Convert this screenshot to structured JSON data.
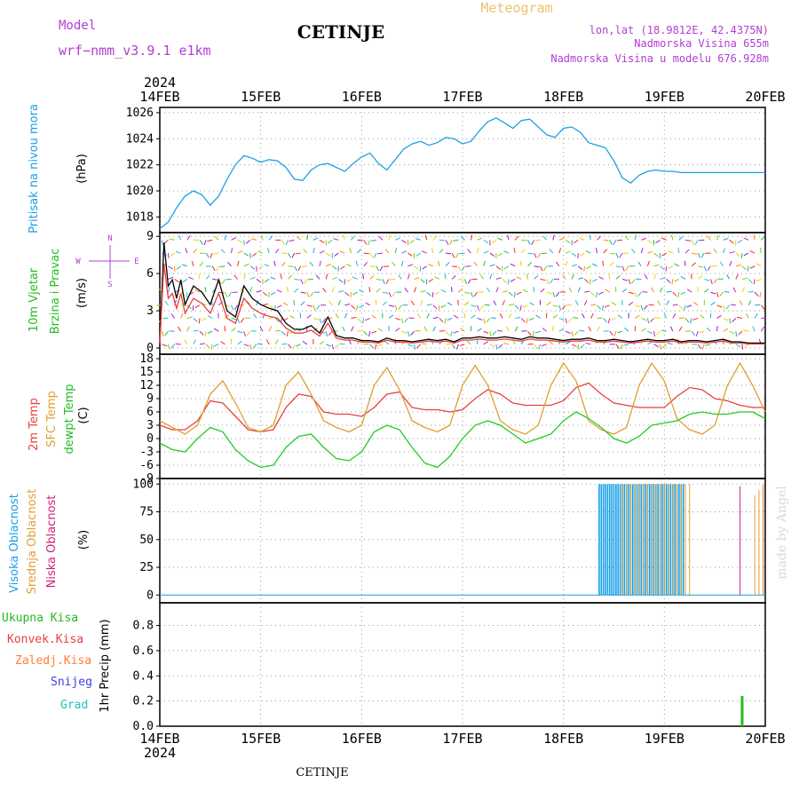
{
  "header": {
    "model_label": "Model",
    "model_name": "wrf−nmm_v3.9.1  e1km",
    "station": "CETINJE",
    "meteogram": "Meteogram",
    "lonlat": "lon,lat (18.9812E, 42.4375N)",
    "altitude": "Nadmorska Visina 655m",
    "model_altitude": "Nadmorska Visina u modelu 676.928m"
  },
  "footer": {
    "station": "CETINJE"
  },
  "watermark": "made by Angel",
  "colors": {
    "pressure": "#1aa0e6",
    "wind_label": "#22bb22",
    "compass": "#b040d0",
    "temp2m": "#e84040",
    "sfc": "#e0a030",
    "dew": "#22cc22",
    "cloud_high": "#1aa0e6",
    "cloud_mid": "#e0a030",
    "cloud_low": "#d02080",
    "precip_total": "#22bb22",
    "precip_conv": "#e84040",
    "precip_frz": "#ff7f30",
    "precip_snow": "#4040e0",
    "precip_grad": "#20c0c0"
  },
  "chart_data": {
    "type": "line",
    "x_axis": {
      "year": "2024",
      "ticks": [
        "14FEB",
        "15FEB",
        "16FEB",
        "17FEB",
        "18FEB",
        "19FEB",
        "20FEB"
      ],
      "range_hours": [
        0,
        144
      ]
    },
    "panels": [
      {
        "key": "pressure",
        "ylabel": [
          "Pritisak na nivou mora",
          "(hPa)"
        ],
        "yticks": [
          1018,
          1020,
          1022,
          1024,
          1026
        ],
        "ylim": [
          1016.8,
          1026.4
        ],
        "grid": true,
        "series": [
          {
            "name": "Pritisak na nivou mora",
            "x": [
              0,
              2,
              4,
              6,
              8,
              10,
              12,
              14,
              16,
              18,
              20,
              22,
              24,
              26,
              28,
              30,
              32,
              34,
              36,
              38,
              40,
              42,
              44,
              46,
              48,
              50,
              52,
              54,
              56,
              58,
              60,
              62,
              64,
              66,
              68,
              70,
              72,
              74,
              76,
              78,
              80,
              82,
              84,
              86,
              88,
              90,
              92,
              94,
              96,
              98,
              100,
              102,
              104,
              106,
              108,
              110,
              112,
              114,
              116,
              118,
              120,
              122,
              124,
              126,
              128,
              130,
              132,
              134,
              136,
              138,
              140,
              142,
              144
            ],
            "values": [
              1017.1,
              1017.6,
              1018.7,
              1019.6,
              1020.0,
              1019.7,
              1018.9,
              1019.6,
              1020.9,
              1022.0,
              1022.7,
              1022.5,
              1022.2,
              1022.4,
              1022.3,
              1021.8,
              1020.9,
              1020.8,
              1021.6,
              1022.0,
              1022.1,
              1021.8,
              1021.5,
              1022.1,
              1022.6,
              1022.9,
              1022.1,
              1021.6,
              1022.4,
              1023.2,
              1023.6,
              1023.8,
              1023.5,
              1023.7,
              1024.1,
              1024.0,
              1023.6,
              1023.8,
              1024.6,
              1025.3,
              1025.6,
              1025.2,
              1024.8,
              1025.4,
              1025.5,
              1024.9,
              1024.3,
              1024.1,
              1024.8,
              1024.9,
              1024.5,
              1023.7,
              1023.5,
              1023.3,
              1022.3,
              1021.0,
              1020.6,
              1021.2,
              1021.5,
              1021.6,
              1021.5,
              1021.5,
              1021.4,
              1021.4,
              1021.4,
              1021.4,
              1021.4,
              1021.4,
              1021.4,
              1021.4,
              1021.4,
              1021.4,
              1021.4
            ]
          }
        ]
      },
      {
        "key": "wind",
        "ylabel": [
          "10m Vjetar",
          "Brzina i Pravac",
          "(m/s)"
        ],
        "compass": {
          "n": "N",
          "w": "W",
          "e": "E",
          "s": "S"
        },
        "yticks": [
          0,
          3,
          6,
          9
        ],
        "ylim": [
          -0.5,
          9.3
        ],
        "grid": true,
        "series": [
          {
            "name": "Brzina",
            "x": [
              0,
              1,
              2,
              3,
              4,
              5,
              6,
              8,
              10,
              12,
              14,
              16,
              18,
              20,
              22,
              24,
              26,
              28,
              30,
              32,
              34,
              36,
              38,
              40,
              42,
              44,
              46,
              48,
              50,
              52,
              54,
              56,
              58,
              60,
              62,
              64,
              66,
              68,
              70,
              72,
              74,
              76,
              78,
              80,
              82,
              84,
              86,
              88,
              90,
              92,
              94,
              96,
              98,
              100,
              102,
              104,
              106,
              108,
              110,
              112,
              114,
              116,
              118,
              120,
              122,
              124,
              126,
              128,
              130,
              132,
              134,
              136,
              138,
              140,
              142,
              144
            ],
            "values": [
              0.5,
              8.5,
              5.0,
              5.5,
              4.0,
              5.5,
              3.5,
              5.0,
              4.5,
              3.5,
              5.5,
              3.0,
              2.5,
              5.0,
              4.0,
              3.5,
              3.2,
              3.0,
              2.0,
              1.5,
              1.5,
              1.8,
              1.2,
              2.5,
              1.0,
              0.8,
              0.8,
              0.6,
              0.6,
              0.5,
              0.8,
              0.6,
              0.6,
              0.5,
              0.6,
              0.7,
              0.6,
              0.7,
              0.5,
              0.8,
              0.8,
              0.9,
              0.8,
              0.8,
              0.9,
              0.8,
              0.7,
              0.9,
              0.8,
              0.8,
              0.7,
              0.6,
              0.7,
              0.7,
              0.8,
              0.6,
              0.6,
              0.7,
              0.6,
              0.5,
              0.6,
              0.7,
              0.6,
              0.6,
              0.7,
              0.5,
              0.6,
              0.6,
              0.5,
              0.6,
              0.7,
              0.5,
              0.5,
              0.4,
              0.4,
              0.4
            ]
          }
        ]
      },
      {
        "key": "temperature",
        "ylabel": [
          "2m Temp",
          "SFC Temp",
          "dewpt Temp",
          "(C)"
        ],
        "yticks": [
          -9,
          -6,
          -3,
          0,
          3,
          6,
          9,
          12,
          15,
          18
        ],
        "ylim": [
          -9,
          19
        ],
        "grid": true,
        "series": [
          {
            "name": "2m Temp",
            "x": [
              0,
              3,
              6,
              9,
              12,
              15,
              18,
              21,
              24,
              27,
              30,
              33,
              36,
              39,
              42,
              45,
              48,
              51,
              54,
              57,
              60,
              63,
              66,
              69,
              72,
              75,
              78,
              81,
              84,
              87,
              90,
              93,
              96,
              99,
              102,
              105,
              108,
              111,
              114,
              117,
              120,
              123,
              126,
              129,
              132,
              135,
              138,
              141,
              144
            ],
            "values": [
              3.0,
              2.0,
              2.0,
              4.0,
              8.5,
              8.0,
              5.0,
              2.0,
              1.5,
              2.0,
              7.0,
              10.0,
              9.5,
              6.0,
              5.5,
              5.5,
              5.0,
              7.0,
              10.0,
              10.5,
              7.0,
              6.5,
              6.5,
              6.0,
              6.5,
              9.0,
              11.0,
              10.0,
              8.0,
              7.5,
              7.5,
              7.5,
              8.5,
              11.5,
              12.5,
              10.0,
              8.0,
              7.5,
              7.0,
              7.0,
              7.0,
              9.5,
              11.5,
              11.0,
              9.0,
              8.5,
              7.5,
              7.0,
              7.0
            ]
          },
          {
            "name": "SFC Temp",
            "x": [
              0,
              3,
              6,
              9,
              12,
              15,
              18,
              21,
              24,
              27,
              30,
              33,
              36,
              39,
              42,
              45,
              48,
              51,
              54,
              57,
              60,
              63,
              66,
              69,
              72,
              75,
              78,
              81,
              84,
              87,
              90,
              93,
              96,
              99,
              102,
              105,
              108,
              111,
              114,
              117,
              120,
              123,
              126,
              129,
              132,
              135,
              138,
              141,
              144
            ],
            "values": [
              4.0,
              2.5,
              1.0,
              3.0,
              10.0,
              13.0,
              8.0,
              2.5,
              1.5,
              3.0,
              12.0,
              15.0,
              10.0,
              4.0,
              2.5,
              1.5,
              3.0,
              12.0,
              16.0,
              11.0,
              4.0,
              2.5,
              1.5,
              3.0,
              12.0,
              16.5,
              12.0,
              4.0,
              2.0,
              1.0,
              3.0,
              12.0,
              17.0,
              13.0,
              4.0,
              2.0,
              1.0,
              2.5,
              12.0,
              17.0,
              13.0,
              4.5,
              2.0,
              1.0,
              3.0,
              12.0,
              17.0,
              12.0,
              6.0
            ]
          },
          {
            "name": "dewpt Temp",
            "x": [
              0,
              3,
              6,
              9,
              12,
              15,
              18,
              21,
              24,
              27,
              30,
              33,
              36,
              39,
              42,
              45,
              48,
              51,
              54,
              57,
              60,
              63,
              66,
              69,
              72,
              75,
              78,
              81,
              84,
              87,
              90,
              93,
              96,
              99,
              102,
              105,
              108,
              111,
              114,
              117,
              120,
              123,
              126,
              129,
              132,
              135,
              138,
              141,
              144
            ],
            "values": [
              -1.0,
              -2.5,
              -3.0,
              0.0,
              2.5,
              1.5,
              -2.5,
              -5.0,
              -6.5,
              -6.0,
              -2.0,
              0.5,
              1.0,
              -2.0,
              -4.5,
              -5.0,
              -3.0,
              1.5,
              3.0,
              2.0,
              -2.0,
              -5.5,
              -6.5,
              -4.0,
              0.0,
              3.0,
              4.0,
              3.0,
              1.0,
              -1.0,
              0.0,
              1.0,
              4.0,
              6.0,
              4.5,
              2.5,
              0.0,
              -1.0,
              0.5,
              3.0,
              3.5,
              4.0,
              5.5,
              6.0,
              5.5,
              5.5,
              6.0,
              6.0,
              4.5
            ]
          }
        ]
      },
      {
        "key": "cloud",
        "ylabel": [
          "Visoka Oblacnost",
          "Srednja Oblacnost",
          "Niska Oblacnost",
          "(%)"
        ],
        "yticks": [
          0,
          25,
          50,
          75,
          100
        ],
        "ylim": [
          -7,
          105
        ],
        "grid": true,
        "bars": [
          {
            "name": "Visoka Oblacnost",
            "x_from": 104.5,
            "x_to": 124.5,
            "value": 100
          },
          {
            "name": "Srednja Oblacnost",
            "x_from": 110,
            "x_to": 126.5,
            "value": 100
          },
          {
            "name": "Niska Oblacnost",
            "x": [
              138,
              143.5
            ],
            "values": [
              98,
              98
            ]
          },
          {
            "name": "Srednja Oblacnost",
            "x": [
              141.5,
              142.5,
              143.5
            ],
            "values": [
              90,
              95,
              100
            ]
          }
        ]
      },
      {
        "key": "precip",
        "ylabel": [
          "1hr Precip (mm)"
        ],
        "legend": [
          "Ukupna  Kisa",
          "Konvek.Kisa",
          "Zaledj.Kisa",
          "Snijeg",
          "Grad"
        ],
        "yticks": [
          0.0,
          0.2,
          0.4,
          0.6,
          0.8
        ],
        "ylim": [
          0,
          0.98
        ],
        "grid": true,
        "bars": [
          {
            "name": "Ukupna  Kisa",
            "x": [
              138.5
            ],
            "values": [
              0.24
            ]
          }
        ]
      }
    ]
  }
}
